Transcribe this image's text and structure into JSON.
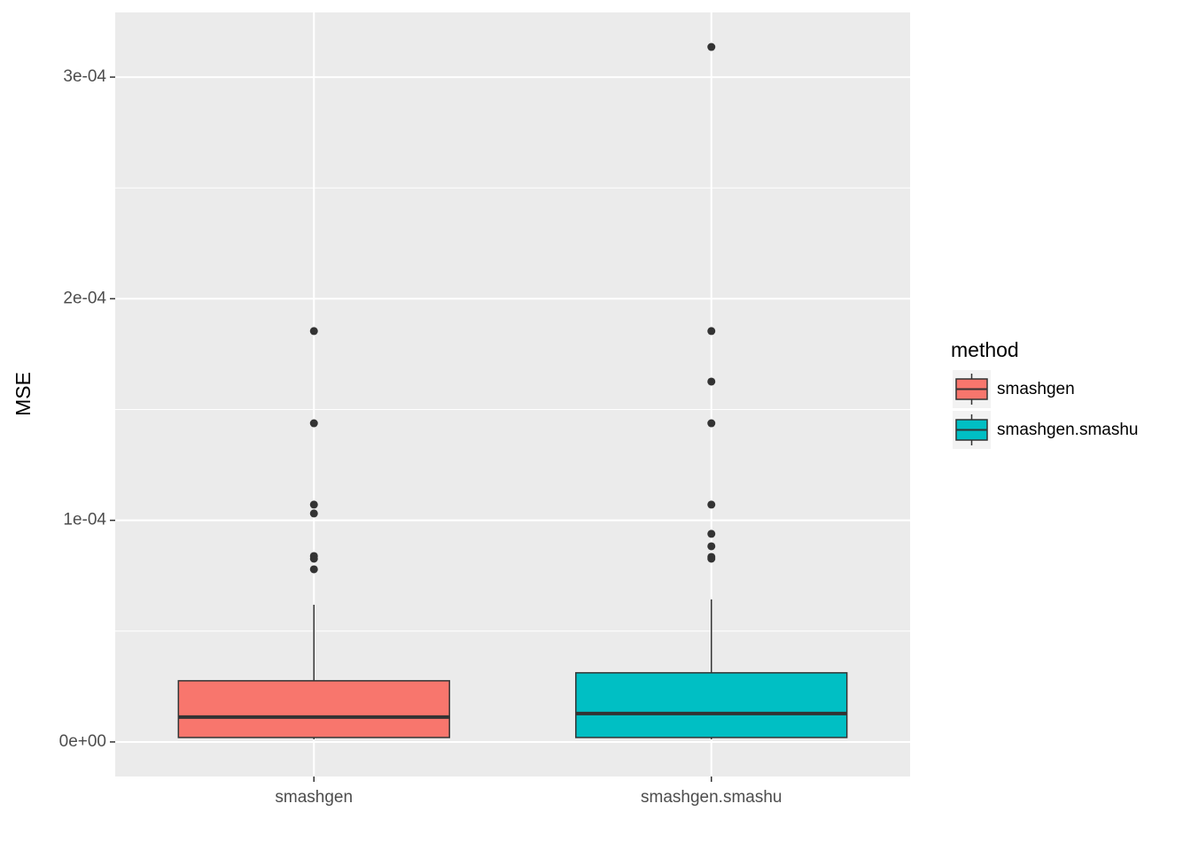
{
  "chart_data": {
    "type": "box",
    "y_label": "MSE",
    "legend_title": "method",
    "legend_position": "right",
    "grid": true,
    "categories": [
      "smashgen",
      "smashgen.smashu"
    ],
    "ylim": [
      -1.56e-05,
      0.0003292
    ],
    "yticks": [
      {
        "value": 0,
        "label": "0e+00"
      },
      {
        "value": 0.0001,
        "label": "1e-04"
      },
      {
        "value": 0.0002,
        "label": "2e-04"
      },
      {
        "value": 0.0003,
        "label": "3e-04"
      }
    ],
    "series": [
      {
        "name": "smashgen",
        "color": "#f8766d",
        "whisker_low": 1.2e-06,
        "q1": 2e-06,
        "median": 1.12e-05,
        "q3": 2.76e-05,
        "whisker_high": 6.19e-05,
        "outliers": [
          0.0001854,
          0.0001438,
          0.0001071,
          0.0001031,
          8.39e-05,
          8.27e-05,
          7.79e-05
        ]
      },
      {
        "name": "smashgen.smashu",
        "color": "#00bfc4",
        "whisker_low": 1.2e-06,
        "q1": 2e-06,
        "median": 1.28e-05,
        "q3": 3.12e-05,
        "whisker_high": 6.43e-05,
        "outliers": [
          0.0003136,
          0.0001854,
          0.0001626,
          0.0001438,
          0.0001071,
          9.39e-05,
          8.83e-05,
          8.35e-05,
          8.27e-05
        ]
      }
    ]
  }
}
